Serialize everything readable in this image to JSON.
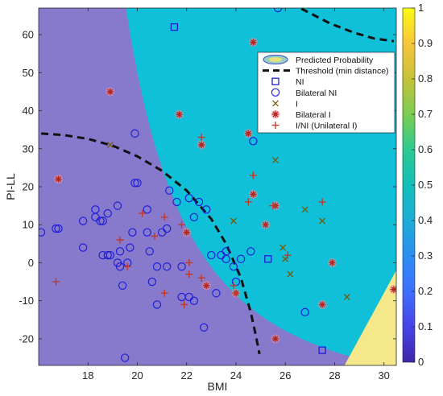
{
  "chart_data": {
    "type": "scatter",
    "xlabel": "BMI",
    "ylabel": "PI-LL",
    "xlim": [
      16,
      30.5
    ],
    "ylim": [
      -27,
      67
    ],
    "x_ticks": [
      18,
      20,
      22,
      24,
      26,
      28,
      30
    ],
    "y_ticks": [
      -20,
      -10,
      0,
      10,
      20,
      30,
      40,
      50,
      60
    ],
    "colorbar": {
      "min": 0,
      "max": 1,
      "ticks": [
        "0",
        "0.1",
        "0.2",
        "0.3",
        "0.4",
        "0.5",
        "0.6",
        "0.7",
        "0.8",
        "0.9",
        "1"
      ]
    },
    "background": "Predicted Probability contour map (parula colormap, low = blue-violet, high = yellow)",
    "legend_position": "top-right",
    "legend": [
      {
        "label": "Predicted Probability",
        "marker": "contour"
      },
      {
        "label": "Threshold (min distance)",
        "marker": "dashed-line",
        "color": "#111111"
      },
      {
        "label": "NI",
        "marker": "square",
        "color": "#1f1fd6"
      },
      {
        "label": "Bilateral NI",
        "marker": "circle",
        "color": "#1f1fd6"
      },
      {
        "label": "I",
        "marker": "x",
        "color": "#7a5a00"
      },
      {
        "label": "Bilateral I",
        "marker": "asterisk",
        "color": "#c0392b"
      },
      {
        "label": "I/NI (Unilateral I)",
        "marker": "plus",
        "color": "#c0392b"
      }
    ],
    "threshold_curves": [
      [
        [
          16.1,
          34
        ],
        [
          17,
          33.6
        ],
        [
          18,
          32.6
        ],
        [
          19,
          30.8
        ],
        [
          20,
          28
        ],
        [
          21,
          24.2
        ],
        [
          22,
          19
        ],
        [
          23,
          11.5
        ],
        [
          23.6,
          5
        ],
        [
          24.2,
          -4
        ],
        [
          24.6,
          -13
        ],
        [
          24.8,
          -19
        ],
        [
          24.95,
          -24
        ]
      ],
      [
        [
          25.8,
          70
        ],
        [
          26.6,
          67
        ],
        [
          27.8,
          63
        ],
        [
          28.8,
          60.5
        ],
        [
          29.6,
          59
        ],
        [
          30.4,
          58.3
        ]
      ]
    ],
    "series": [
      {
        "name": "NI",
        "marker": "square",
        "points": [
          [
            21.5,
            62
          ],
          [
            25.3,
            1
          ],
          [
            27.5,
            -23
          ]
        ]
      },
      {
        "name": "Bilateral NI",
        "marker": "circle",
        "points": [
          [
            16.1,
            8
          ],
          [
            16.7,
            9
          ],
          [
            16.8,
            9
          ],
          [
            17.8,
            11
          ],
          [
            17.8,
            4
          ],
          [
            18.3,
            14
          ],
          [
            18.3,
            12
          ],
          [
            18.5,
            11
          ],
          [
            18.6,
            11
          ],
          [
            18.8,
            13
          ],
          [
            18.6,
            2
          ],
          [
            18.8,
            2
          ],
          [
            18.9,
            2
          ],
          [
            19.2,
            0
          ],
          [
            19.3,
            -1
          ],
          [
            19.3,
            3
          ],
          [
            19.6,
            0
          ],
          [
            19.4,
            -6
          ],
          [
            19.7,
            4
          ],
          [
            19.8,
            8
          ],
          [
            19.2,
            15
          ],
          [
            19.9,
            21
          ],
          [
            20,
            21
          ],
          [
            19.9,
            34
          ],
          [
            20.4,
            14
          ],
          [
            20.4,
            8
          ],
          [
            20.5,
            3
          ],
          [
            20.6,
            -5
          ],
          [
            20.8,
            -1
          ],
          [
            20.8,
            -11
          ],
          [
            21,
            8
          ],
          [
            21.2,
            9
          ],
          [
            21.2,
            -1
          ],
          [
            21.3,
            19
          ],
          [
            21.6,
            16
          ],
          [
            21.8,
            -1
          ],
          [
            21.8,
            -9
          ],
          [
            22.1,
            -9
          ],
          [
            22.1,
            17
          ],
          [
            22.3,
            -10
          ],
          [
            22.3,
            12
          ],
          [
            22.5,
            16
          ],
          [
            22.7,
            -17
          ],
          [
            22.8,
            14
          ],
          [
            23,
            2
          ],
          [
            23.2,
            -8
          ],
          [
            23.4,
            2
          ],
          [
            23.6,
            3
          ],
          [
            23.6,
            1
          ],
          [
            23.9,
            -1
          ],
          [
            24,
            -5
          ],
          [
            24.2,
            1
          ],
          [
            24.6,
            3
          ],
          [
            24.7,
            32
          ],
          [
            25.7,
            67
          ],
          [
            19.5,
            -25
          ],
          [
            26.8,
            -13
          ]
        ]
      },
      {
        "name": "I",
        "marker": "x",
        "points": [
          [
            18.9,
            31
          ],
          [
            23.9,
            11
          ],
          [
            25.6,
            27
          ],
          [
            25.9,
            4
          ],
          [
            26,
            1
          ],
          [
            26.2,
            -3
          ],
          [
            26.8,
            14
          ],
          [
            27.5,
            11
          ],
          [
            28.5,
            -9
          ]
        ]
      },
      {
        "name": "Bilateral I",
        "marker": "asterisk",
        "points": [
          [
            16.8,
            22
          ],
          [
            18.9,
            45
          ],
          [
            21.7,
            39
          ],
          [
            22,
            8
          ],
          [
            22.6,
            31
          ],
          [
            22.8,
            -6
          ],
          [
            24,
            -8
          ],
          [
            24.5,
            34
          ],
          [
            24.7,
            18
          ],
          [
            24.7,
            58
          ],
          [
            25.2,
            10
          ],
          [
            25.6,
            15
          ],
          [
            25.6,
            -20
          ],
          [
            27.5,
            -11
          ],
          [
            27.9,
            0
          ],
          [
            30.4,
            -7
          ]
        ]
      },
      {
        "name": "I/NI (Unilateral I)",
        "marker": "plus",
        "points": [
          [
            16.7,
            -5
          ],
          [
            19.3,
            6
          ],
          [
            19.6,
            -1
          ],
          [
            20.2,
            13
          ],
          [
            20.7,
            7
          ],
          [
            21.1,
            12
          ],
          [
            21.1,
            -8
          ],
          [
            21.8,
            10
          ],
          [
            21.9,
            -11
          ],
          [
            22.1,
            0
          ],
          [
            22.1,
            -3
          ],
          [
            22.6,
            33
          ],
          [
            22.6,
            -4
          ],
          [
            23.9,
            -6
          ],
          [
            24,
            -8
          ],
          [
            24.5,
            16
          ],
          [
            24.7,
            23
          ],
          [
            25.5,
            15
          ],
          [
            26.1,
            2
          ],
          [
            27.5,
            16
          ]
        ]
      }
    ]
  }
}
